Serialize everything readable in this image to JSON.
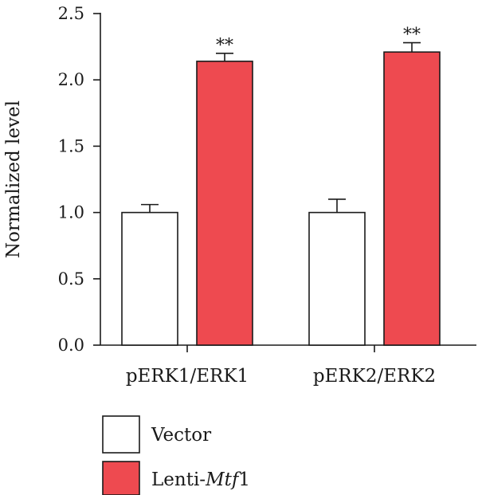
{
  "chart_data": {
    "type": "bar",
    "title": "",
    "xlabel": "",
    "ylabel": "Normalized level",
    "ylim": [
      0,
      2.5
    ],
    "yticks": [
      0.0,
      0.5,
      1.0,
      1.5,
      2.0,
      2.5
    ],
    "ytick_labels": [
      "0.0",
      "0.5",
      "1.0",
      "1.5",
      "2.0",
      "2.5"
    ],
    "grid": false,
    "categories": [
      "pERK1/ERK1",
      "pERK2/ERK2"
    ],
    "series": [
      {
        "name": "Vector",
        "color": "#ffffff",
        "values": [
          1.0,
          1.0
        ],
        "errors": [
          0.06,
          0.1
        ],
        "significance": [
          "",
          ""
        ]
      },
      {
        "name_prefix": "Lenti-",
        "name_italic": "Mtf",
        "name_suffix": "1",
        "color": "#ee4a50",
        "values": [
          2.14,
          2.21
        ],
        "errors": [
          0.06,
          0.07
        ],
        "significance": [
          "**",
          "**"
        ]
      }
    ],
    "legend_position": "bottom-left"
  }
}
